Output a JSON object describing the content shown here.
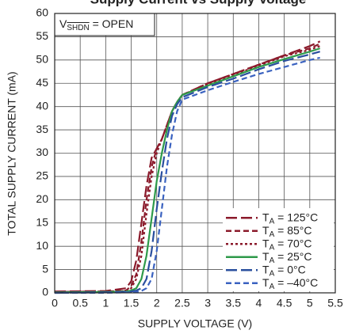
{
  "chart_data": {
    "type": "line",
    "title": "Supply Current vs Supply Voltage",
    "annotation": {
      "text": "V",
      "subscript": "SHDN",
      "rest": " = OPEN"
    },
    "xlabel": "SUPPLY VOLTAGE (V)",
    "ylabel": "TOTAL SUPPLY CURRENT (mA)",
    "x": [
      0,
      1,
      1.4,
      1.5,
      1.6,
      1.7,
      1.8,
      1.9,
      2.0,
      2.1,
      2.2,
      2.3,
      2.4,
      2.5,
      3,
      3.5,
      4,
      4.5,
      5,
      5.2
    ],
    "series": [
      {
        "name": "TA = 125°C",
        "color": "#8b1a2b",
        "dash": "14,5",
        "values": [
          0.3,
          0.4,
          1,
          2.5,
          7,
          15,
          23,
          29,
          31,
          33,
          36,
          39,
          41,
          42.5,
          45,
          47,
          49,
          51,
          53,
          54
        ]
      },
      {
        "name": "TA = 85°C",
        "color": "#8b1a2b",
        "dash": "7,4",
        "values": [
          0.2,
          0.3,
          0.5,
          1.5,
          4,
          11,
          20,
          27,
          31,
          33,
          36,
          39,
          41,
          42.5,
          45,
          47,
          49,
          51,
          52.5,
          53.5
        ]
      },
      {
        "name": "TA = 70°C",
        "color": "#8b1a2b",
        "dash": "3,3",
        "values": [
          0.2,
          0.3,
          0.4,
          1,
          3,
          8,
          17,
          25,
          30,
          33,
          36,
          39,
          41,
          42.5,
          44.8,
          46.8,
          48.8,
          50.8,
          52.2,
          53
        ]
      },
      {
        "name": "TA = 25°C",
        "color": "#2e9a4a",
        "dash": "none",
        "values": [
          0.1,
          0.2,
          0.3,
          0.5,
          1,
          3,
          8,
          16,
          24,
          30,
          35,
          39,
          41,
          42.5,
          44.5,
          46.5,
          48.5,
          50.2,
          51.8,
          52.5
        ]
      },
      {
        "name": "TA = 0°C",
        "color": "#2a4f9e",
        "dash": "14,5",
        "values": [
          0,
          0.1,
          0.2,
          0.3,
          0.5,
          1,
          3,
          9,
          18,
          26,
          33,
          38,
          40.5,
          42,
          44.2,
          46,
          48,
          49.8,
          51.2,
          51.8
        ]
      },
      {
        "name": "TA = –40°C",
        "color": "#3a62c0",
        "dash": "7,4",
        "values": [
          0,
          0,
          0.1,
          0.1,
          0.2,
          0.4,
          1,
          3,
          9,
          18,
          27,
          34,
          39,
          41.5,
          43.5,
          45.3,
          47,
          48.5,
          50,
          50.5
        ]
      }
    ],
    "xlim": [
      0,
      5.5
    ],
    "xticks": [
      0,
      0.5,
      1,
      1.5,
      2,
      2.5,
      3,
      3.5,
      4,
      4.5,
      5,
      5.5
    ],
    "ylim": [
      0,
      60
    ],
    "yticks": [
      0,
      5,
      10,
      15,
      20,
      25,
      30,
      35,
      40,
      45,
      50,
      55,
      60
    ],
    "grid": true,
    "legend": "lower right"
  }
}
